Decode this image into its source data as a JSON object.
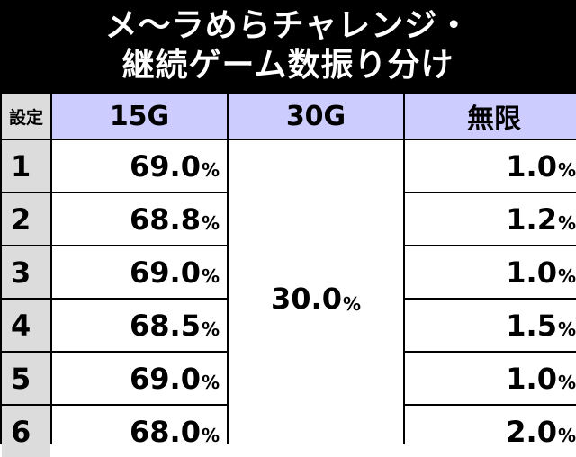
{
  "title": {
    "line1": "メ〜ラめらチャレンジ・",
    "line2": "継続ゲーム数振り分け"
  },
  "table": {
    "headers": [
      "設定",
      "15G",
      "30G",
      "無限"
    ],
    "rows": [
      {
        "setting": "1",
        "g15": "69.0",
        "inf": "1.0"
      },
      {
        "setting": "2",
        "g15": "68.8",
        "inf": "1.2"
      },
      {
        "setting": "3",
        "g15": "69.0",
        "inf": "1.0"
      },
      {
        "setting": "4",
        "g15": "68.5",
        "inf": "1.5"
      },
      {
        "setting": "5",
        "g15": "69.0",
        "inf": "1.0"
      },
      {
        "setting": "6",
        "g15": "68.0",
        "inf": "2.0"
      }
    ],
    "g30_all": "30.0",
    "pct_unit": "%"
  },
  "colors": {
    "title_bg": "#000000",
    "header_bg": "#ccccff",
    "setting_bg": "#dcdcdc"
  }
}
